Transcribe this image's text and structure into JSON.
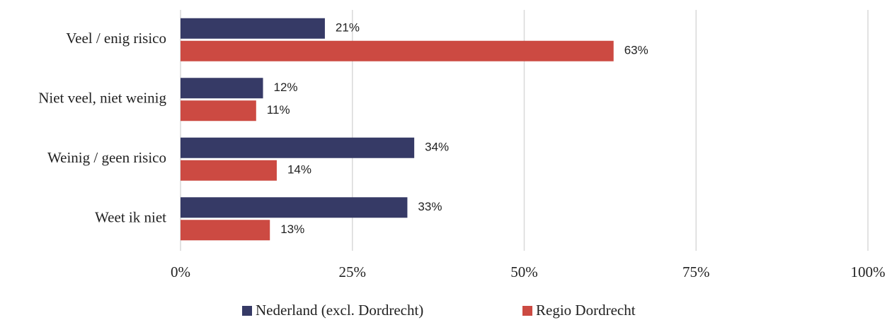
{
  "chart_data": {
    "type": "bar",
    "orientation": "horizontal",
    "categories": [
      "Veel / enig risico",
      "Niet veel, niet weinig",
      "Weinig / geen risico",
      "Weet ik niet"
    ],
    "series": [
      {
        "name": "Nederland (excl. Dordrecht)",
        "color": "#363a66",
        "values": [
          21,
          12,
          34,
          33
        ],
        "value_labels": [
          "21%",
          "12%",
          "34%",
          "33%"
        ]
      },
      {
        "name": "Regio Dordrecht",
        "color": "#cc4a42",
        "values": [
          63,
          11,
          14,
          13
        ],
        "value_labels": [
          "63%",
          "11%",
          "14%",
          "13%"
        ]
      }
    ],
    "xlim": [
      0,
      100
    ],
    "xticks": [
      {
        "value": 0,
        "label": "0%"
      },
      {
        "value": 25,
        "label": "25%"
      },
      {
        "value": 50,
        "label": "50%"
      },
      {
        "value": 75,
        "label": "75%"
      },
      {
        "value": 100,
        "label": "100%"
      }
    ],
    "grid": true,
    "legend": "bottom"
  }
}
